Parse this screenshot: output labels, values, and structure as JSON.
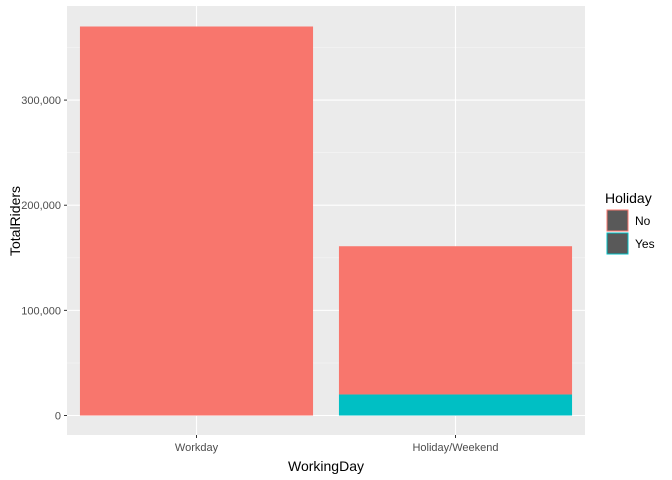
{
  "chart_data": {
    "type": "bar",
    "stacked": true,
    "categories": [
      "Workday",
      "Holiday/Weekend"
    ],
    "series": [
      {
        "name": "No",
        "values": [
          370000,
          141000
        ],
        "color": "#F8766D"
      },
      {
        "name": "Yes",
        "values": [
          0,
          20000
        ],
        "color": "#00BFC4"
      }
    ],
    "xlabel": "WorkingDay",
    "ylabel": "TotalRiders",
    "ylim": [
      0,
      370000
    ],
    "yticks": [
      0,
      100000,
      200000,
      300000
    ],
    "ytick_labels": [
      "0",
      "100,000",
      "200,000",
      "300,000"
    ],
    "grid": true,
    "panel_background": "#EBEBEB",
    "legend": {
      "title": "Holiday",
      "placement": "right",
      "swatch_fill": "#595959"
    }
  }
}
